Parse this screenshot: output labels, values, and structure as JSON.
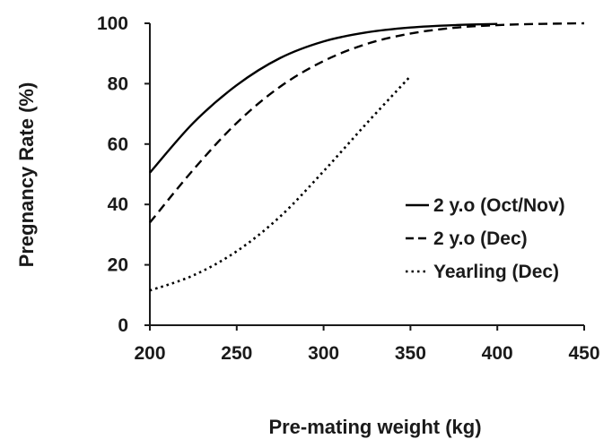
{
  "chart_data": {
    "type": "line",
    "title": "",
    "xlabel": "Pre-mating weight (kg)",
    "ylabel": "Pregnancy Rate (%)",
    "xlim": [
      200,
      450
    ],
    "ylim": [
      0,
      100
    ],
    "x_ticks": [
      "200",
      "250",
      "300",
      "350",
      "400",
      "450"
    ],
    "y_ticks": [
      "0",
      "20",
      "40",
      "60",
      "80",
      "100"
    ],
    "grid": false,
    "legend_position": "right",
    "series": [
      {
        "name": "2 y.o (Oct/Nov)",
        "line_style": "solid",
        "color": "#000000",
        "x": [
          200,
          225,
          250,
          275,
          300,
          325,
          350,
          375,
          400
        ],
        "y": [
          50.5,
          67,
          79.5,
          88.5,
          94,
          97,
          98.6,
          99.4,
          99.8
        ]
      },
      {
        "name": "2 y.o (Dec)",
        "line_style": "dashed",
        "color": "#000000",
        "x": [
          200,
          225,
          250,
          275,
          300,
          325,
          350,
          375,
          400,
          425,
          450
        ],
        "y": [
          34,
          51.5,
          67,
          79,
          87.5,
          93.2,
          96.6,
          98.5,
          99.4,
          99.8,
          100
        ]
      },
      {
        "name": "Yearling (Dec)",
        "line_style": "dotted",
        "color": "#000000",
        "x": [
          200,
          225,
          250,
          275,
          300,
          325,
          350
        ],
        "y": [
          11.5,
          16.5,
          24.5,
          36,
          51,
          67,
          82.5
        ]
      }
    ]
  }
}
